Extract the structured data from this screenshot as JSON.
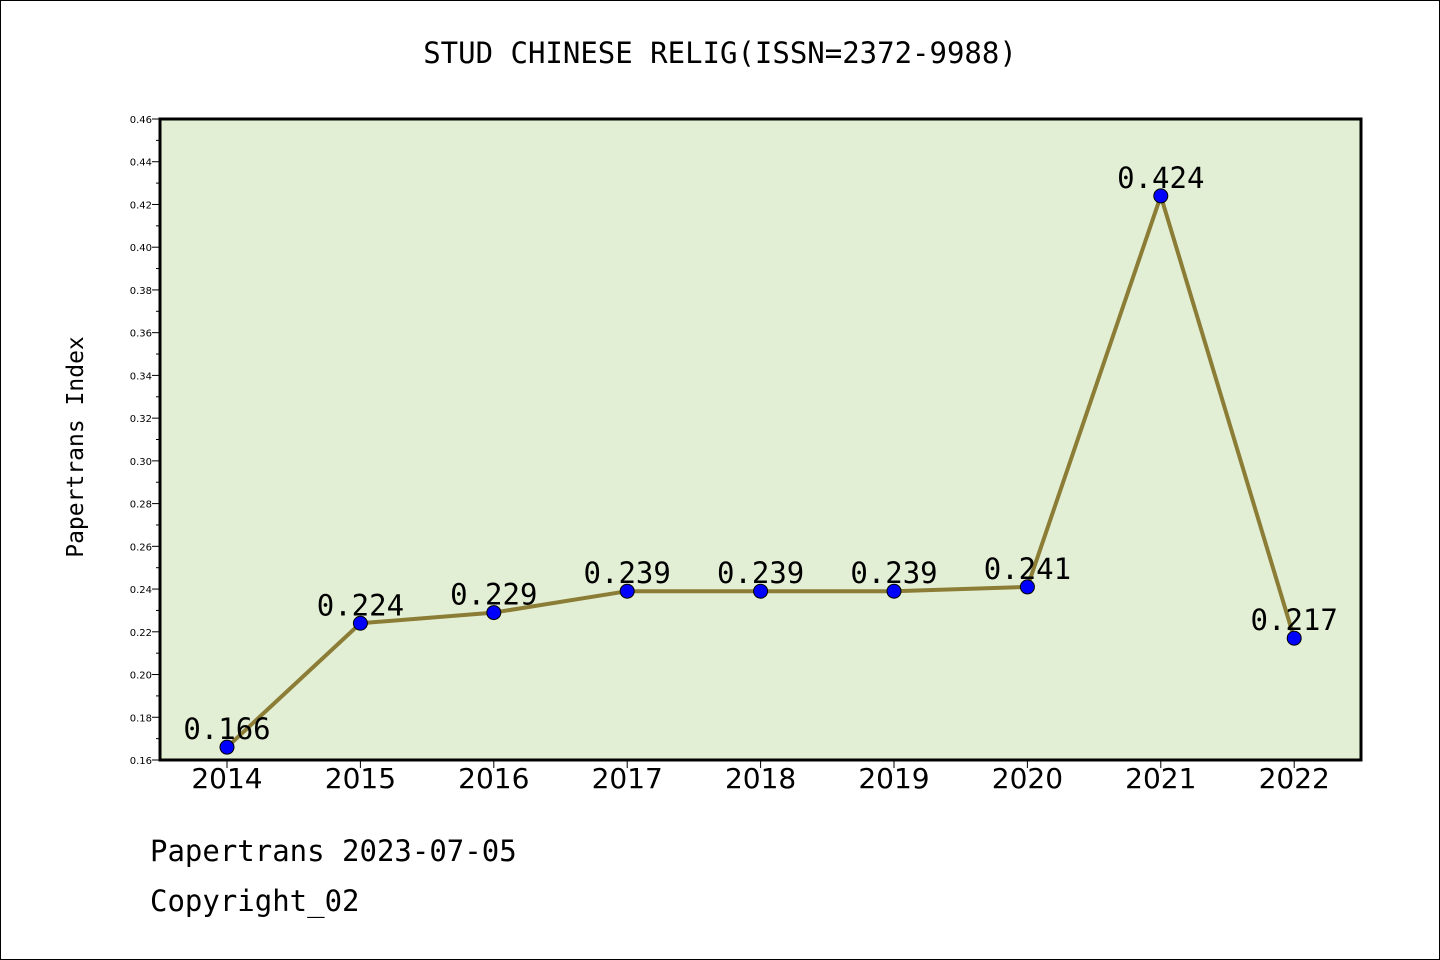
{
  "chart_data": {
    "type": "line",
    "title": "STUD CHINESE RELIG(ISSN=2372-9988)",
    "xlabel": "",
    "ylabel": "Papertrans Index",
    "categories": [
      "2014",
      "2015",
      "2016",
      "2017",
      "2018",
      "2019",
      "2020",
      "2021",
      "2022"
    ],
    "series": [
      {
        "values": [
          0.166,
          0.224,
          0.229,
          0.239,
          0.239,
          0.239,
          0.241,
          0.424,
          0.217
        ],
        "labels": [
          "0.166",
          "0.224",
          "0.229",
          "0.239",
          "0.239",
          "0.239",
          "0.241",
          "0.424",
          "0.217"
        ]
      }
    ],
    "ylim": [
      0.16,
      0.46
    ],
    "yticks": [
      "0.16",
      "0.18",
      "0.20",
      "0.22",
      "0.24",
      "0.26",
      "0.28",
      "0.30",
      "0.32",
      "0.34",
      "0.36",
      "0.38",
      "0.40",
      "0.42",
      "0.44",
      "0.46"
    ],
    "grid": false,
    "legend": "none",
    "colors": {
      "plot_background": "#e2efd5",
      "line": "#8b7d36",
      "marker": "#0000ff",
      "axis": "#000000"
    }
  },
  "footer": {
    "date_line": "Papertrans 2023-07-05",
    "copyright": "Copyright_02"
  }
}
